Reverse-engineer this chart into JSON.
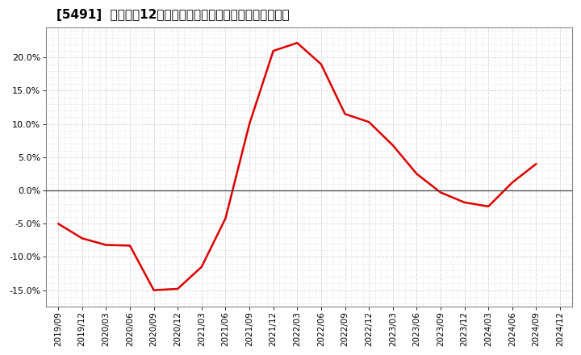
{
  "title": "[5491]  売上高の12か月移動合計の対前年同期増減率の推移",
  "line_color": "#dd0000",
  "background_color": "#ffffff",
  "plot_bg_color": "#ffffff",
  "grid_color": "#bbbbbb",
  "ylim": [
    -0.175,
    0.245
  ],
  "yticks": [
    -0.15,
    -0.1,
    -0.05,
    0.0,
    0.05,
    0.1,
    0.15,
    0.2
  ],
  "x_labels": [
    "2019/09",
    "2019/12",
    "2020/03",
    "2020/06",
    "2020/09",
    "2020/12",
    "2021/03",
    "2021/06",
    "2021/09",
    "2021/12",
    "2022/03",
    "2022/06",
    "2022/09",
    "2022/12",
    "2023/03",
    "2023/06",
    "2023/09",
    "2023/12",
    "2024/03",
    "2024/06",
    "2024/09",
    "2024/12"
  ],
  "values": [
    -0.05,
    -0.072,
    -0.082,
    -0.083,
    -0.15,
    -0.148,
    -0.115,
    -0.042,
    0.1,
    0.21,
    0.222,
    0.19,
    0.115,
    0.103,
    0.068,
    0.025,
    -0.003,
    -0.018,
    -0.024,
    0.012,
    0.04,
    null
  ],
  "title_fontsize": 11,
  "tick_fontsize": 7.5,
  "ytick_fontsize": 8
}
